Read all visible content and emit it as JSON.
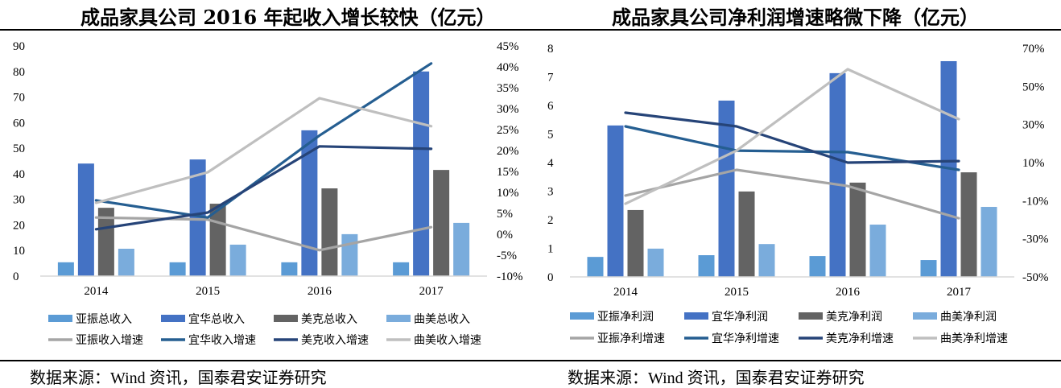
{
  "left_title": "成品家具公司 2016 年起收入增长较快（亿元）",
  "right_title": "成品家具公司净利润增速略微下降（亿元）",
  "source_left": "数据来源：Wind 资讯，国泰君安证券研究",
  "source_right": "数据来源：Wind 资讯，国泰君安证券研究",
  "colors": {
    "bar_yazhen": "#5b9bd5",
    "bar_yihua": "#4472c4",
    "bar_meike": "#636363",
    "bar_qumei": "#7aacdc",
    "line_yazhen": "#a5a5a5",
    "line_yihua": "#255e91",
    "line_meike": "#264478",
    "line_qumei": "#bfbfbf",
    "axis": "#d9d9d9"
  },
  "chart_data": [
    {
      "type": "bar+line",
      "title": "成品家具公司 2016 年起收入增长较快（亿元）",
      "categories": [
        "2014",
        "2015",
        "2016",
        "2017"
      ],
      "y_left": {
        "range": [
          0,
          90
        ],
        "ticks": [
          "0",
          "10",
          "20",
          "30",
          "40",
          "50",
          "60",
          "70",
          "80",
          "90"
        ]
      },
      "y_right": {
        "range": [
          -10,
          45
        ],
        "ticks": [
          "-10%",
          "-5%",
          "0%",
          "5%",
          "10%",
          "15%",
          "20%",
          "25%",
          "30%",
          "35%",
          "40%",
          "45%"
        ]
      },
      "bar_series": [
        {
          "name": "亚振总收入",
          "color_key": "bar_yazhen",
          "values": [
            5.4,
            5.4,
            5.4,
            5.4
          ]
        },
        {
          "name": "宜华总收入",
          "color_key": "bar_yihua",
          "values": [
            44.0,
            45.6,
            57.0,
            80.0
          ]
        },
        {
          "name": "美克总收入",
          "color_key": "bar_meike",
          "values": [
            26.7,
            28.3,
            34.3,
            41.5
          ]
        },
        {
          "name": "曲美总收入",
          "color_key": "bar_qumei",
          "values": [
            10.7,
            12.3,
            16.4,
            20.8
          ]
        }
      ],
      "line_series": [
        {
          "name": "亚振收入增速",
          "color_key": "line_yazhen",
          "values": [
            4.0,
            3.5,
            -3.8,
            1.7
          ]
        },
        {
          "name": "宜华收入增速",
          "color_key": "line_yihua",
          "values": [
            8.1,
            4.0,
            23.6,
            40.8
          ]
        },
        {
          "name": "美克收入增速",
          "color_key": "line_meike",
          "values": [
            1.2,
            5.2,
            21.0,
            20.4
          ]
        },
        {
          "name": "曲美收入增速",
          "color_key": "line_qumei",
          "values": [
            7.5,
            14.8,
            32.5,
            25.8
          ]
        }
      ],
      "legend": "bottom"
    },
    {
      "type": "bar+line",
      "title": "成品家具公司净利润增速略微下降（亿元）",
      "categories": [
        "2014",
        "2015",
        "2016",
        "2017"
      ],
      "y_left": {
        "range": [
          0,
          8
        ],
        "ticks": [
          "0",
          "1",
          "2",
          "3",
          "4",
          "5",
          "6",
          "7",
          "8"
        ]
      },
      "y_right": {
        "range": [
          -50,
          70
        ],
        "ticks": [
          "-50%",
          "-30%",
          "-10%",
          "10%",
          "30%",
          "50%",
          "70%"
        ]
      },
      "bar_series": [
        {
          "name": "亚振净利润",
          "color_key": "bar_yazhen",
          "values": [
            0.7,
            0.76,
            0.73,
            0.59
          ]
        },
        {
          "name": "宜华净利润",
          "color_key": "bar_yihua",
          "values": [
            5.3,
            6.17,
            7.13,
            7.55
          ]
        },
        {
          "name": "美克净利润",
          "color_key": "bar_meike",
          "values": [
            2.34,
            2.99,
            3.3,
            3.66
          ]
        },
        {
          "name": "曲美净利润",
          "color_key": "bar_qumei",
          "values": [
            0.99,
            1.15,
            1.83,
            2.45
          ]
        }
      ],
      "line_series": [
        {
          "name": "亚振净利增速",
          "color_key": "line_yazhen",
          "values": [
            -7.3,
            6.2,
            -2.3,
            -19.2
          ]
        },
        {
          "name": "宜华净利增速",
          "color_key": "line_yihua",
          "values": [
            29.0,
            16.3,
            15.5,
            6.2
          ]
        },
        {
          "name": "美克净利增速",
          "color_key": "line_meike",
          "values": [
            36.2,
            29.0,
            10.0,
            10.8
          ]
        },
        {
          "name": "曲美净利增速",
          "color_key": "line_qumei",
          "values": [
            -11.6,
            16.3,
            59.0,
            32.8
          ]
        }
      ],
      "legend": "bottom"
    }
  ]
}
